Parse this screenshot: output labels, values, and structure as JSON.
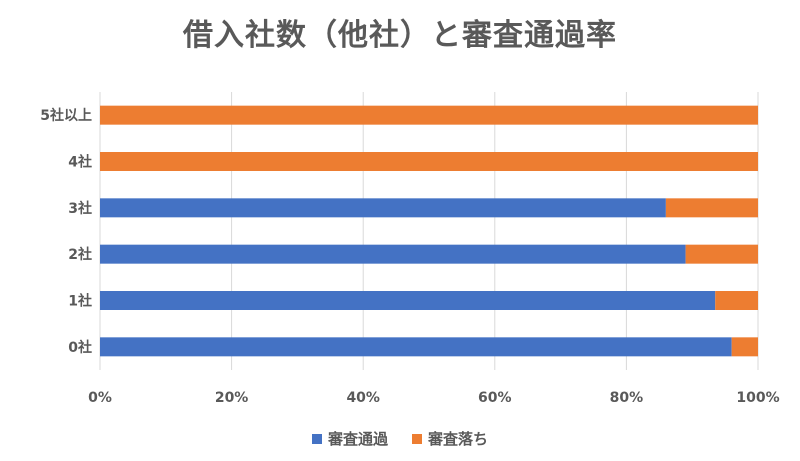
{
  "chart_data": {
    "type": "bar",
    "orientation": "horizontal",
    "stacked": "100%",
    "title": "借入社数（他社）と審査通過率",
    "categories": [
      "0社",
      "1社",
      "2社",
      "3社",
      "4社",
      "5社以上"
    ],
    "series": [
      {
        "name": "審査通過",
        "color": "#4472C4",
        "values": [
          96,
          93.5,
          89,
          86,
          0,
          0
        ]
      },
      {
        "name": "審査落ち",
        "color": "#ED7D31",
        "values": [
          4,
          6.5,
          11,
          14,
          100,
          100
        ]
      }
    ],
    "xlim": [
      0,
      100
    ],
    "xticks": [
      "0%",
      "20%",
      "40%",
      "60%",
      "80%",
      "100%"
    ],
    "grid": true,
    "legend_position": "bottom"
  }
}
